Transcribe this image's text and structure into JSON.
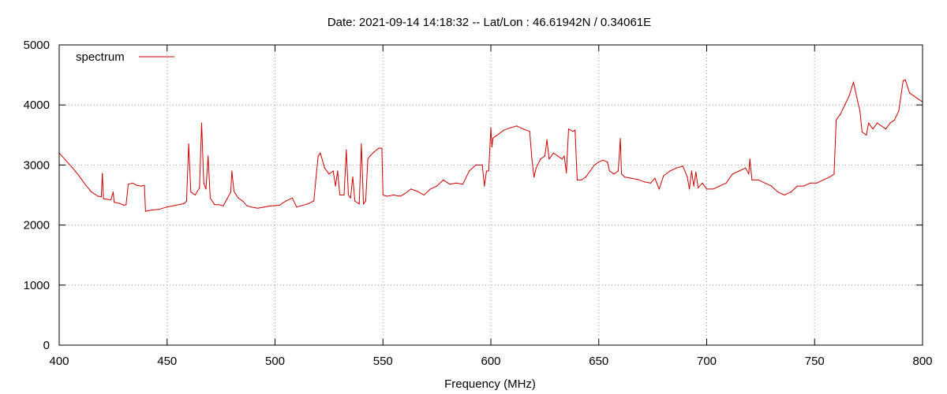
{
  "chart_data": {
    "type": "line",
    "title": "Date: 2021-09-14 14:18:32  --  Lat/Lon : 46.61942N / 0.34061E",
    "xlabel": "Frequency (MHz)",
    "ylabel": "",
    "xlim": [
      400,
      800
    ],
    "ylim": [
      0,
      5000
    ],
    "x_ticks": [
      400,
      450,
      500,
      550,
      600,
      650,
      700,
      750,
      800
    ],
    "y_ticks": [
      0,
      1000,
      2000,
      3000,
      4000,
      5000
    ],
    "grid": true,
    "legend_position": "top-left",
    "series": [
      {
        "name": "spectrum",
        "color": "#cc0000",
        "points": [
          [
            400,
            3200
          ],
          [
            403,
            3080
          ],
          [
            406,
            2960
          ],
          [
            409,
            2830
          ],
          [
            412,
            2680
          ],
          [
            415,
            2550
          ],
          [
            418,
            2480
          ],
          [
            419.5,
            2470
          ],
          [
            420,
            2860
          ],
          [
            420.5,
            2440
          ],
          [
            424,
            2420
          ],
          [
            425,
            2550
          ],
          [
            425.5,
            2380
          ],
          [
            428,
            2360
          ],
          [
            430,
            2330
          ],
          [
            431,
            2340
          ],
          [
            432,
            2680
          ],
          [
            434,
            2700
          ],
          [
            436,
            2660
          ],
          [
            438,
            2650
          ],
          [
            439.5,
            2660
          ],
          [
            440,
            2230
          ],
          [
            443,
            2250
          ],
          [
            446,
            2260
          ],
          [
            450,
            2300
          ],
          [
            454,
            2330
          ],
          [
            458,
            2360
          ],
          [
            459,
            2400
          ],
          [
            460,
            3350
          ],
          [
            461,
            2550
          ],
          [
            463,
            2500
          ],
          [
            465,
            2620
          ],
          [
            466,
            3700
          ],
          [
            467,
            2700
          ],
          [
            468,
            2600
          ],
          [
            469,
            3150
          ],
          [
            470,
            2450
          ],
          [
            472,
            2340
          ],
          [
            474,
            2340
          ],
          [
            476,
            2320
          ],
          [
            478,
            2450
          ],
          [
            479.5,
            2550
          ],
          [
            480,
            2900
          ],
          [
            481,
            2560
          ],
          [
            483,
            2450
          ],
          [
            485,
            2400
          ],
          [
            487,
            2320
          ],
          [
            489,
            2300
          ],
          [
            492,
            2280
          ],
          [
            495,
            2300
          ],
          [
            498,
            2320
          ],
          [
            502,
            2330
          ],
          [
            505,
            2400
          ],
          [
            508,
            2450
          ],
          [
            510,
            2300
          ],
          [
            512,
            2320
          ],
          [
            515,
            2350
          ],
          [
            518,
            2400
          ],
          [
            519,
            2800
          ],
          [
            520,
            3150
          ],
          [
            521,
            3200
          ],
          [
            523,
            2950
          ],
          [
            525,
            2850
          ],
          [
            527,
            2900
          ],
          [
            528,
            2650
          ],
          [
            529,
            2900
          ],
          [
            530,
            2500
          ],
          [
            532,
            2500
          ],
          [
            533,
            3250
          ],
          [
            534,
            2500
          ],
          [
            535,
            2450
          ],
          [
            536,
            2800
          ],
          [
            537,
            2400
          ],
          [
            539,
            2350
          ],
          [
            540,
            3350
          ],
          [
            541,
            2350
          ],
          [
            542,
            2400
          ],
          [
            543,
            3100
          ],
          [
            544,
            3150
          ],
          [
            546,
            3220
          ],
          [
            548,
            3280
          ],
          [
            549.5,
            3280
          ],
          [
            550,
            2500
          ],
          [
            552,
            2480
          ],
          [
            555,
            2500
          ],
          [
            558,
            2480
          ],
          [
            560,
            2520
          ],
          [
            563,
            2600
          ],
          [
            566,
            2560
          ],
          [
            569,
            2500
          ],
          [
            572,
            2600
          ],
          [
            575,
            2650
          ],
          [
            578,
            2750
          ],
          [
            581,
            2680
          ],
          [
            584,
            2700
          ],
          [
            587,
            2680
          ],
          [
            590,
            2900
          ],
          [
            593,
            3000
          ],
          [
            596,
            3000
          ],
          [
            597,
            2650
          ],
          [
            598,
            2900
          ],
          [
            599,
            2900
          ],
          [
            600,
            3620
          ],
          [
            600.5,
            3300
          ],
          [
            601,
            3450
          ],
          [
            603,
            3500
          ],
          [
            606,
            3580
          ],
          [
            609,
            3620
          ],
          [
            612,
            3650
          ],
          [
            615,
            3600
          ],
          [
            618,
            3560
          ],
          [
            619,
            3100
          ],
          [
            620,
            2800
          ],
          [
            621,
            2950
          ],
          [
            623,
            3100
          ],
          [
            625,
            3150
          ],
          [
            626,
            3420
          ],
          [
            627,
            3100
          ],
          [
            629,
            3200
          ],
          [
            631,
            3150
          ],
          [
            633,
            3100
          ],
          [
            634,
            3150
          ],
          [
            635,
            2870
          ],
          [
            636,
            3600
          ],
          [
            638,
            3560
          ],
          [
            639,
            3580
          ],
          [
            640,
            2750
          ],
          [
            642,
            2750
          ],
          [
            644,
            2800
          ],
          [
            646,
            2900
          ],
          [
            648,
            3000
          ],
          [
            650,
            3050
          ],
          [
            652,
            3080
          ],
          [
            654,
            3050
          ],
          [
            655,
            2900
          ],
          [
            657,
            2850
          ],
          [
            659,
            2900
          ],
          [
            660,
            3440
          ],
          [
            660.5,
            2850
          ],
          [
            662,
            2800
          ],
          [
            665,
            2780
          ],
          [
            668,
            2760
          ],
          [
            671,
            2720
          ],
          [
            674,
            2700
          ],
          [
            676,
            2780
          ],
          [
            678,
            2600
          ],
          [
            680,
            2820
          ],
          [
            683,
            2900
          ],
          [
            686,
            2950
          ],
          [
            689,
            2980
          ],
          [
            691,
            2800
          ],
          [
            692,
            2600
          ],
          [
            693,
            2900
          ],
          [
            694,
            2650
          ],
          [
            695,
            2880
          ],
          [
            696,
            2620
          ],
          [
            698,
            2700
          ],
          [
            700,
            2600
          ],
          [
            703,
            2600
          ],
          [
            706,
            2650
          ],
          [
            709,
            2700
          ],
          [
            712,
            2850
          ],
          [
            715,
            2900
          ],
          [
            718,
            2950
          ],
          [
            719.5,
            2850
          ],
          [
            720,
            3100
          ],
          [
            721,
            2750
          ],
          [
            724,
            2750
          ],
          [
            727,
            2700
          ],
          [
            730,
            2650
          ],
          [
            733,
            2550
          ],
          [
            736,
            2500
          ],
          [
            739,
            2550
          ],
          [
            742,
            2650
          ],
          [
            745,
            2650
          ],
          [
            748,
            2700
          ],
          [
            751,
            2700
          ],
          [
            754,
            2750
          ],
          [
            757,
            2800
          ],
          [
            759,
            2850
          ],
          [
            760,
            3750
          ],
          [
            762,
            3850
          ],
          [
            764,
            4000
          ],
          [
            766,
            4150
          ],
          [
            768,
            4380
          ],
          [
            770,
            4050
          ],
          [
            771,
            3900
          ],
          [
            772,
            3550
          ],
          [
            774,
            3500
          ],
          [
            775,
            3700
          ],
          [
            777,
            3600
          ],
          [
            779,
            3700
          ],
          [
            781,
            3650
          ],
          [
            783,
            3600
          ],
          [
            785,
            3700
          ],
          [
            787,
            3750
          ],
          [
            789,
            3900
          ],
          [
            791,
            4400
          ],
          [
            792,
            4420
          ],
          [
            794,
            4200
          ],
          [
            796,
            4150
          ],
          [
            798,
            4100
          ],
          [
            800,
            4050
          ]
        ]
      }
    ]
  }
}
